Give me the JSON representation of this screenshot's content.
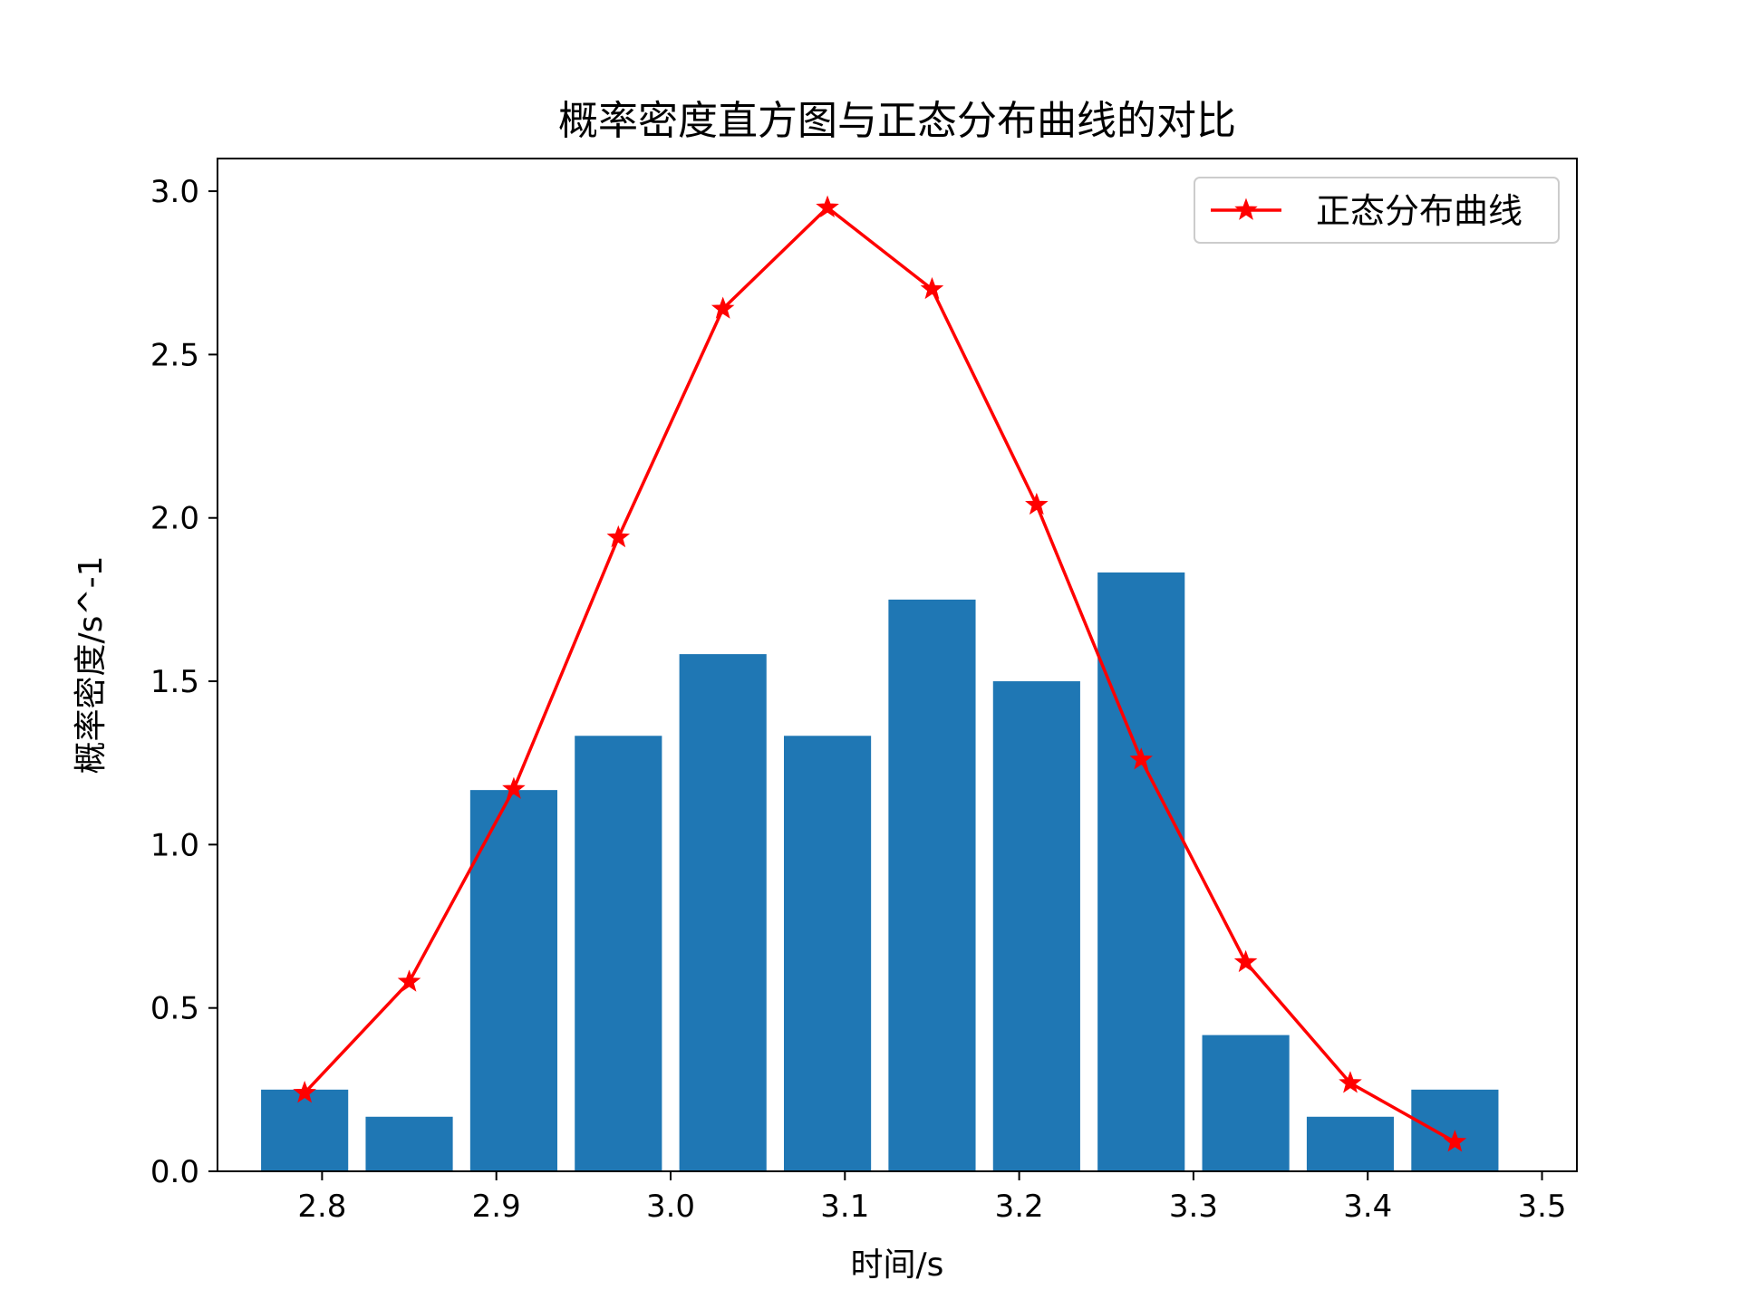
{
  "chart_data": {
    "type": "bar",
    "title": "概率密度直方图与正态分布曲线的对比",
    "xlabel": "时间/s",
    "ylabel": "概率密度/s^-1",
    "xlim": [
      2.74,
      3.52
    ],
    "ylim": [
      0.0,
      3.1
    ],
    "xticks": [
      2.8,
      2.9,
      3.0,
      3.1,
      3.2,
      3.3,
      3.4,
      3.5
    ],
    "xtick_labels": [
      "2.8",
      "2.9",
      "3.0",
      "3.1",
      "3.2",
      "3.3",
      "3.4",
      "3.5"
    ],
    "yticks": [
      0.0,
      0.5,
      1.0,
      1.5,
      2.0,
      2.5,
      3.0
    ],
    "ytick_labels": [
      "0.0",
      "0.5",
      "1.0",
      "1.5",
      "2.0",
      "2.5",
      "3.0"
    ],
    "grid": false,
    "legend_position": "top-right",
    "bars": {
      "color": "#1f77b4",
      "width": 0.05,
      "x": [
        2.79,
        2.85,
        2.91,
        2.97,
        3.03,
        3.09,
        3.15,
        3.21,
        3.27,
        3.33,
        3.39,
        3.45
      ],
      "values": [
        0.25,
        0.167,
        1.167,
        1.333,
        1.583,
        1.333,
        1.75,
        1.5,
        1.833,
        0.417,
        0.167,
        0.25
      ]
    },
    "series": [
      {
        "name": "正态分布曲线",
        "type": "line",
        "marker": "star",
        "color": "#ff0000",
        "x": [
          2.79,
          2.85,
          2.91,
          2.97,
          3.03,
          3.09,
          3.15,
          3.21,
          3.27,
          3.33,
          3.39,
          3.45
        ],
        "values": [
          0.24,
          0.58,
          1.17,
          1.94,
          2.64,
          2.95,
          2.7,
          2.04,
          1.26,
          0.64,
          0.27,
          0.09
        ]
      }
    ]
  }
}
